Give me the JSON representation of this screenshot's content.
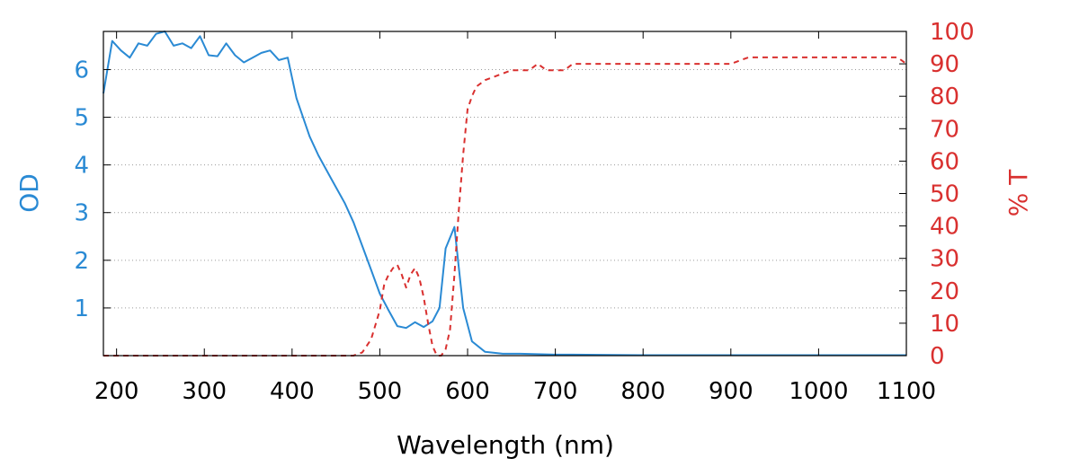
{
  "chart_data": {
    "type": "line",
    "title": "",
    "xlabel": "Wavelength (nm)",
    "ylabel": "OD",
    "y2label": "% T",
    "xlim": [
      185,
      1100
    ],
    "ylim": [
      0,
      6.8
    ],
    "y2lim": [
      0,
      100
    ],
    "xticks": [
      "200",
      "300",
      "400",
      "500",
      "600",
      "700",
      "800",
      "900",
      "1000",
      "1100"
    ],
    "yticks": [
      "1",
      "2",
      "3",
      "4",
      "5",
      "6"
    ],
    "y2ticks": [
      "0",
      "10",
      "20",
      "30",
      "40",
      "50",
      "60",
      "70",
      "80",
      "90",
      "100"
    ],
    "grid": "horizontal dotted",
    "legend": "none",
    "colors": {
      "od": "#2a8ad4",
      "transmission": "#d9302f",
      "axis": "#000000",
      "grid": "#9a9a9a"
    },
    "series": [
      {
        "axis": "left",
        "style": "solid",
        "x": [
          185,
          195,
          205,
          215,
          225,
          235,
          245,
          255,
          265,
          275,
          285,
          295,
          305,
          315,
          325,
          335,
          345,
          355,
          365,
          375,
          385,
          395,
          405,
          420,
          430,
          445,
          460,
          470,
          480,
          490,
          500,
          510,
          520,
          530,
          540,
          550,
          560,
          568,
          575,
          585,
          595,
          605,
          620,
          640,
          660,
          680,
          700,
          720,
          800,
          900,
          1000,
          1100
        ],
        "values": [
          5.5,
          6.6,
          6.4,
          6.25,
          6.55,
          6.5,
          6.75,
          6.8,
          6.5,
          6.55,
          6.45,
          6.7,
          6.3,
          6.28,
          6.55,
          6.3,
          6.15,
          6.25,
          6.35,
          6.4,
          6.2,
          6.25,
          5.4,
          4.6,
          4.2,
          3.7,
          3.2,
          2.8,
          2.3,
          1.8,
          1.3,
          0.95,
          0.62,
          0.58,
          0.7,
          0.6,
          0.72,
          1.0,
          2.25,
          2.7,
          1.0,
          0.3,
          0.08,
          0.04,
          0.04,
          0.03,
          0.02,
          0.02,
          0.01,
          0.01,
          0.01,
          0.01
        ]
      },
      {
        "axis": "right",
        "style": "dashed",
        "x": [
          185,
          300,
          400,
          470,
          480,
          490,
          500,
          505,
          510,
          515,
          520,
          525,
          530,
          535,
          540,
          545,
          550,
          555,
          560,
          565,
          570,
          575,
          580,
          585,
          590,
          595,
          600,
          605,
          610,
          615,
          620,
          630,
          640,
          650,
          660,
          670,
          680,
          690,
          700,
          710,
          720,
          800,
          900,
          920,
          930,
          1000,
          1090,
          1100
        ],
        "values": [
          0,
          0,
          0,
          0,
          1,
          5,
          14,
          22,
          25,
          27,
          28,
          25,
          21,
          25,
          27,
          24,
          18,
          10,
          3,
          0,
          0,
          2,
          8,
          25,
          45,
          62,
          76,
          80,
          83,
          84,
          85,
          86,
          87,
          88,
          88,
          88,
          90,
          88,
          88,
          88,
          90,
          90,
          90,
          92,
          92,
          92,
          92,
          90
        ]
      }
    ]
  }
}
